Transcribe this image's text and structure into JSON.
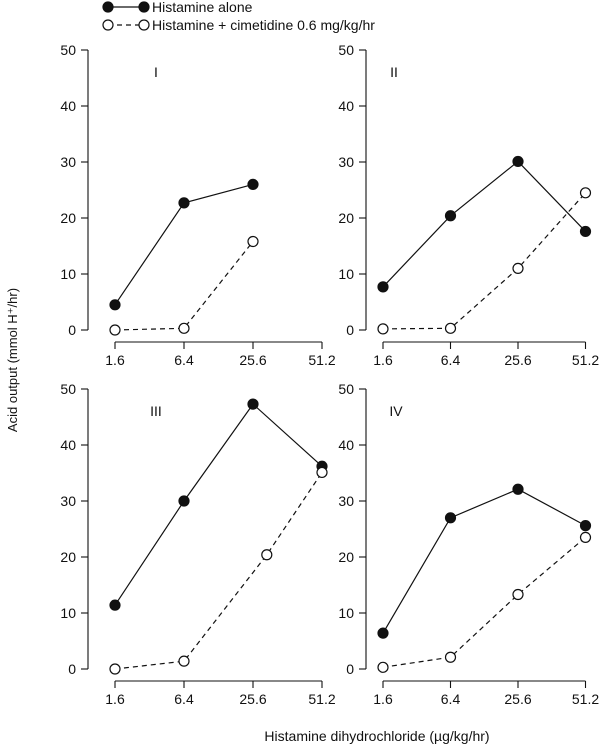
{
  "chart_data": {
    "type": "line",
    "xlabel": "Histamine dihydrochloride (µg/kg/hr)",
    "ylabel": "Acid output (mmol H⁺/hr)",
    "categories": [
      "1.6",
      "6.4",
      "25.6",
      "51.2"
    ],
    "ylim": [
      0,
      50
    ],
    "yticks": [
      "0",
      "10",
      "20",
      "30",
      "40",
      "50"
    ],
    "legend": [
      {
        "name": "Histamine alone",
        "marker": "filled-circle",
        "line": "solid"
      },
      {
        "name": "Histamine + cimetidine 0.6 mg/kg/hr",
        "marker": "open-circle",
        "line": "dashed"
      }
    ],
    "panels": [
      {
        "label": "I",
        "series": [
          {
            "name": "Histamine alone",
            "x": [
              0,
              1,
              2
            ],
            "values": [
              4.5,
              22.7,
              26
            ]
          },
          {
            "name": "Histamine + cimetidine 0.6 mg/kg/hr",
            "x": [
              0,
              1,
              2
            ],
            "values": [
              0,
              0.3,
              15.8
            ]
          }
        ]
      },
      {
        "label": "II",
        "series": [
          {
            "name": "Histamine alone",
            "x": [
              0,
              1,
              2,
              3
            ],
            "values": [
              7.7,
              20.4,
              30.1,
              17.6
            ]
          },
          {
            "name": "Histamine + cimetidine 0.6 mg/kg/hr",
            "x": [
              0,
              1,
              2,
              3
            ],
            "values": [
              0.2,
              0.3,
              11,
              24.5
            ]
          }
        ]
      },
      {
        "label": "III",
        "series": [
          {
            "name": "Histamine alone",
            "x": [
              0,
              1,
              2,
              3
            ],
            "values": [
              11.4,
              30,
              47.3,
              36.2
            ]
          },
          {
            "name": "Histamine + cimetidine 0.6 mg/kg/hr",
            "x": [
              0,
              1,
              2.2,
              3
            ],
            "values": [
              0,
              1.4,
              20.4,
              35.1
            ]
          }
        ]
      },
      {
        "label": "IV",
        "series": [
          {
            "name": "Histamine alone",
            "x": [
              0,
              1,
              2,
              3
            ],
            "values": [
              6.4,
              27,
              32.1,
              25.6
            ]
          },
          {
            "name": "Histamine + cimetidine 0.6 mg/kg/hr",
            "x": [
              0,
              1,
              2,
              3
            ],
            "values": [
              0.3,
              2.1,
              13.3,
              23.5
            ]
          }
        ]
      }
    ]
  }
}
